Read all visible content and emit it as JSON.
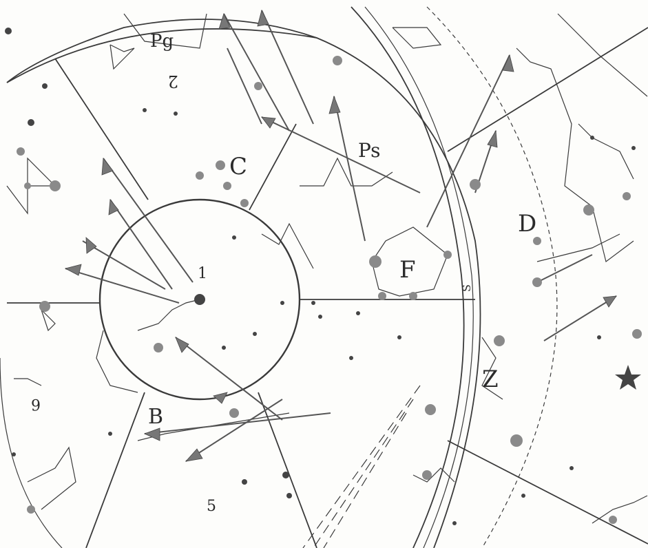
{
  "map": {
    "labels": {
      "region_1": "1",
      "region_2": "2",
      "region_5": "5",
      "region_6": "6",
      "label_C": "C",
      "label_F": "F",
      "label_D": "D",
      "label_B": "B",
      "label_Z": "Z",
      "label_Ps": "Ps",
      "label_Pg": "Pg",
      "label_S": "S"
    },
    "colors": {
      "ink": "#3a3a3a",
      "paper": "#fdfdfb"
    }
  }
}
